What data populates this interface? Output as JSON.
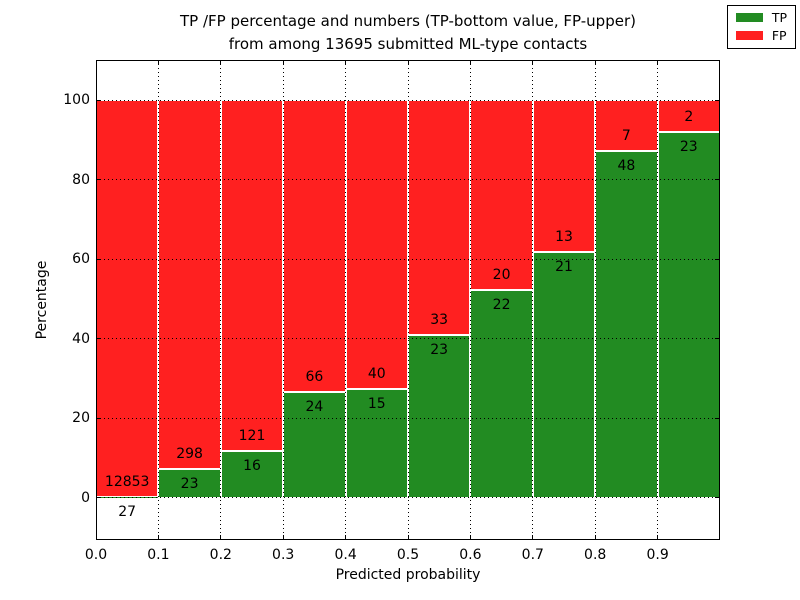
{
  "chart_data": {
    "type": "bar",
    "stacked": true,
    "percent_normalized": true,
    "title_line1": "TP /FP percentage and numbers (TP-bottom value, FP-upper)",
    "title_line2": "from among 13695 submitted ML-type contacts",
    "total_contacts": "13695",
    "xlabel": "Predicted probability",
    "ylabel": "Percentage",
    "categories": [
      "0.0-0.1",
      "0.1-0.2",
      "0.2-0.3",
      "0.3-0.4",
      "0.4-0.5",
      "0.5-0.6",
      "0.6-0.7",
      "0.7-0.8",
      "0.8-0.9",
      "0.9-1.0"
    ],
    "series": [
      {
        "name": "TP",
        "color": "#228b22",
        "counts": [
          27,
          23,
          16,
          24,
          15,
          23,
          22,
          21,
          48,
          23
        ]
      },
      {
        "name": "FP",
        "color": "#ff2020",
        "counts": [
          12853,
          298,
          121,
          66,
          40,
          33,
          20,
          13,
          7,
          2
        ]
      }
    ],
    "tp_percent_of_bin": [
      0.21,
      7.17,
      11.68,
      26.67,
      27.27,
      41.07,
      52.38,
      61.76,
      87.27,
      92.0
    ],
    "x_tick_labels": [
      "0.0",
      "0.1",
      "0.2",
      "0.3",
      "0.4",
      "0.5",
      "0.6",
      "0.7",
      "0.8",
      "0.9"
    ],
    "y_tick_labels": [
      "0",
      "20",
      "40",
      "60",
      "80",
      "100"
    ],
    "y_tick_values": [
      0,
      20,
      40,
      60,
      80,
      100
    ],
    "xlim": [
      0.0,
      1.0
    ],
    "ylim": [
      -10.6,
      110.1
    ],
    "grid": true,
    "grid_style": "dotted",
    "legend": {
      "position": "upper right",
      "entries": [
        {
          "label": "TP",
          "color": "#228b22"
        },
        {
          "label": "FP",
          "color": "#ff2020"
        }
      ]
    }
  }
}
